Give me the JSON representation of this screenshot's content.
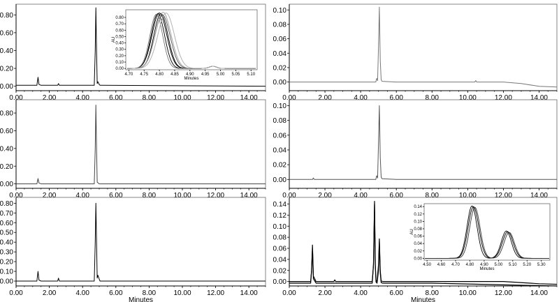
{
  "chart_data": [
    {
      "type": "line",
      "xlim": [
        0,
        15
      ],
      "ylim": [
        -0.05,
        0.92
      ],
      "xticks": [
        "0.00",
        "2.00",
        "4.00",
        "6.00",
        "8.00",
        "10.00",
        "12.00",
        "14.00"
      ],
      "yticks": [
        "0.00",
        "0.20",
        "0.40",
        "0.60",
        "0.80"
      ],
      "xlabel": "",
      "color": "#000000",
      "series": [
        {
          "x": [
            0,
            1.25,
            1.32,
            1.38,
            1.5,
            2.5,
            2.55,
            2.6,
            4.7,
            4.76,
            4.8,
            4.84,
            4.88,
            4.92,
            5.0,
            5.05,
            5.1,
            15
          ],
          "y": [
            0.01,
            0.01,
            0.1,
            0.02,
            0.01,
            0.01,
            0.03,
            0.01,
            0.01,
            0.4,
            0.88,
            0.4,
            0.03,
            0.05,
            0.02,
            0.01,
            0.01,
            0.0
          ]
        }
      ],
      "inset": {
        "xlim": [
          4.69,
          5.12
        ],
        "ylim": [
          -0.02,
          0.92
        ],
        "xticks": [
          "4.70",
          "4.75",
          "4.80",
          "4.85",
          "4.90",
          "4.95",
          "5.00",
          "5.05",
          "5.10"
        ],
        "yticks": [
          "0.00",
          "0.10",
          "0.20",
          "0.30",
          "0.40",
          "0.50",
          "0.60",
          "0.70",
          "0.80"
        ],
        "ylabel": "AU",
        "xlabel": "Minutes",
        "series": [
          {
            "center": 4.795,
            "width": 0.022,
            "height": 0.86,
            "color": "#000000"
          },
          {
            "center": 4.8,
            "width": 0.024,
            "height": 0.87,
            "color": "#000000"
          },
          {
            "center": 4.805,
            "width": 0.023,
            "height": 0.86,
            "color": "#000000"
          },
          {
            "center": 4.81,
            "width": 0.025,
            "height": 0.84,
            "color": "#555555"
          },
          {
            "center": 4.79,
            "width": 0.021,
            "height": 0.85,
            "color": "#777777"
          },
          {
            "center": 4.812,
            "width": 0.026,
            "height": 0.88,
            "color": "#999999"
          },
          {
            "center": 4.822,
            "width": 0.027,
            "height": 0.87,
            "color": "#aaaaaa"
          }
        ],
        "minor_peak": {
          "center": 4.975,
          "width": 0.012,
          "height": 0.035
        }
      }
    },
    {
      "type": "line",
      "xlim": [
        0,
        15
      ],
      "ylim": [
        -0.012,
        0.108
      ],
      "xticks": [
        "0.00",
        "2.00",
        "4.00",
        "6.00",
        "8.00",
        "10.00",
        "12.00",
        "14.00"
      ],
      "yticks": [
        "0.00",
        "0.02",
        "0.04",
        "0.06",
        "0.08",
        "0.10"
      ],
      "xlabel": "",
      "color": "#777777",
      "series": [
        {
          "x": [
            0,
            2,
            4.0,
            4.85,
            4.9,
            4.95,
            5.0,
            5.05,
            5.1,
            5.15,
            5.2,
            6,
            8,
            10.4,
            10.45,
            10.5,
            12,
            13,
            14,
            15
          ],
          "y": [
            0.0,
            0.0,
            0.0,
            0.0,
            0.005,
            0.002,
            0.05,
            0.104,
            0.03,
            0.003,
            0.001,
            0.0,
            0.0,
            0.0,
            0.002,
            0.0,
            0.0,
            -0.002,
            -0.006,
            -0.007
          ]
        }
      ]
    },
    {
      "type": "line",
      "xlim": [
        0,
        15
      ],
      "ylim": [
        -0.05,
        0.95
      ],
      "xticks": [
        "0.00",
        "2.00",
        "4.00",
        "6.00",
        "8.00",
        "10.00",
        "12.00",
        "14.00"
      ],
      "yticks": [
        "0.00",
        "0.20",
        "0.40",
        "0.60",
        "0.80"
      ],
      "xlabel": "",
      "color": "#444444",
      "series": [
        {
          "x": [
            0,
            1.25,
            1.32,
            1.38,
            1.5,
            4.7,
            4.76,
            4.8,
            4.84,
            4.88,
            5.0,
            15
          ],
          "y": [
            0.0,
            0.0,
            0.06,
            0.01,
            0.0,
            0.0,
            0.4,
            0.89,
            0.4,
            0.02,
            0.0,
            0.0
          ]
        }
      ]
    },
    {
      "type": "line",
      "xlim": [
        0,
        15
      ],
      "ylim": [
        -0.012,
        0.108
      ],
      "xticks": [
        "0.00",
        "2.00",
        "4.00",
        "6.00",
        "8.00",
        "10.00",
        "12.00",
        "14.00"
      ],
      "yticks": [
        "0.00",
        "0.02",
        "0.04",
        "0.06",
        "0.08",
        "0.10"
      ],
      "xlabel": "",
      "color": "#555555",
      "series": [
        {
          "x": [
            0,
            1.3,
            1.35,
            1.4,
            4.0,
            4.85,
            4.9,
            4.95,
            5.0,
            5.05,
            5.1,
            5.15,
            5.2,
            6,
            15
          ],
          "y": [
            0.0,
            0.0,
            0.002,
            0.0,
            0.0,
            0.0,
            0.005,
            0.002,
            0.05,
            0.1,
            0.03,
            0.003,
            0.001,
            0.0,
            0.0
          ]
        }
      ]
    },
    {
      "type": "line",
      "xlim": [
        0,
        15
      ],
      "ylim": [
        -0.05,
        0.86
      ],
      "xticks": [
        "0.00",
        "2.00",
        "4.00",
        "6.00",
        "8.00",
        "10.00",
        "12.00",
        "14.00"
      ],
      "yticks": [
        "0.00",
        "0.10",
        "0.20",
        "0.30",
        "0.40",
        "0.50",
        "0.60",
        "0.70",
        "0.80"
      ],
      "xlabel": "Minutes",
      "color": "#000000",
      "series": [
        {
          "x": [
            0,
            1.25,
            1.32,
            1.38,
            1.5,
            2.5,
            2.55,
            2.6,
            4.7,
            4.76,
            4.8,
            4.84,
            4.88,
            4.92,
            5.0,
            5.05,
            15
          ],
          "y": [
            0.0,
            0.0,
            0.1,
            0.01,
            0.0,
            0.0,
            0.03,
            0.0,
            0.0,
            0.4,
            0.8,
            0.4,
            0.03,
            0.06,
            0.02,
            0.0,
            0.0
          ]
        }
      ]
    },
    {
      "type": "line",
      "xlim": [
        0,
        15
      ],
      "ylim": [
        -0.008,
        0.152
      ],
      "xticks": [
        "0.00",
        "2.00",
        "4.00",
        "6.00",
        "8.00",
        "10.00",
        "12.00",
        "14.00"
      ],
      "yticks": [
        "0.00",
        "0.02",
        "0.04",
        "0.06",
        "0.08",
        "0.10",
        "0.12",
        "0.14"
      ],
      "xlabel": "Minutes",
      "color": "#000000",
      "series": [
        {
          "x": [
            0,
            1.2,
            1.25,
            1.3,
            1.35,
            1.5,
            2.5,
            2.55,
            2.6,
            4.65,
            4.72,
            4.78,
            4.82,
            4.86,
            4.92,
            5.0,
            5.05,
            5.1,
            5.15,
            5.25,
            6,
            8,
            10,
            12,
            14,
            15
          ],
          "y": [
            0.0,
            0.0,
            0.02,
            0.066,
            0.01,
            0.0,
            0.0,
            0.003,
            0.0,
            0.0,
            0.03,
            0.145,
            0.03,
            0.002,
            0.0,
            0.03,
            0.077,
            0.02,
            0.001,
            0.0,
            0.0,
            0.0,
            0.0,
            0.0,
            -0.004,
            -0.005
          ]
        },
        {
          "x": [
            0,
            1.2,
            1.25,
            1.3,
            1.35,
            1.5,
            4.65,
            4.72,
            4.78,
            4.82,
            4.86,
            4.92,
            5.0,
            5.05,
            5.1,
            5.15,
            5.25,
            8,
            12,
            15
          ],
          "y": [
            -0.003,
            -0.003,
            0.02,
            0.06,
            0.005,
            -0.003,
            -0.003,
            0.03,
            0.14,
            0.03,
            -0.001,
            -0.003,
            0.02,
            0.072,
            0.015,
            -0.002,
            -0.003,
            -0.003,
            -0.006,
            -0.008
          ]
        }
      ],
      "inset": {
        "xlim": [
          4.48,
          5.36
        ],
        "ylim": [
          -0.005,
          0.148
        ],
        "xticks": [
          "4.50",
          "4.60",
          "4.70",
          "4.80",
          "4.90",
          "5.00",
          "5.10",
          "5.20",
          "5.30"
        ],
        "yticks": [
          "0.00",
          "0.02",
          "0.04",
          "0.06",
          "0.08",
          "0.10",
          "0.12",
          "0.14"
        ],
        "ylabel": "AU",
        "xlabel": "Minutes",
        "series": [
          {
            "c1": 4.815,
            "h1": 0.142,
            "c2": 5.055,
            "h2": 0.074,
            "w": 0.035,
            "color": "#000000"
          },
          {
            "c1": 4.825,
            "h1": 0.14,
            "c2": 5.065,
            "h2": 0.072,
            "w": 0.037,
            "color": "#000000"
          },
          {
            "c1": 4.835,
            "h1": 0.138,
            "c2": 5.075,
            "h2": 0.07,
            "w": 0.036,
            "color": "#333333"
          }
        ]
      }
    }
  ]
}
